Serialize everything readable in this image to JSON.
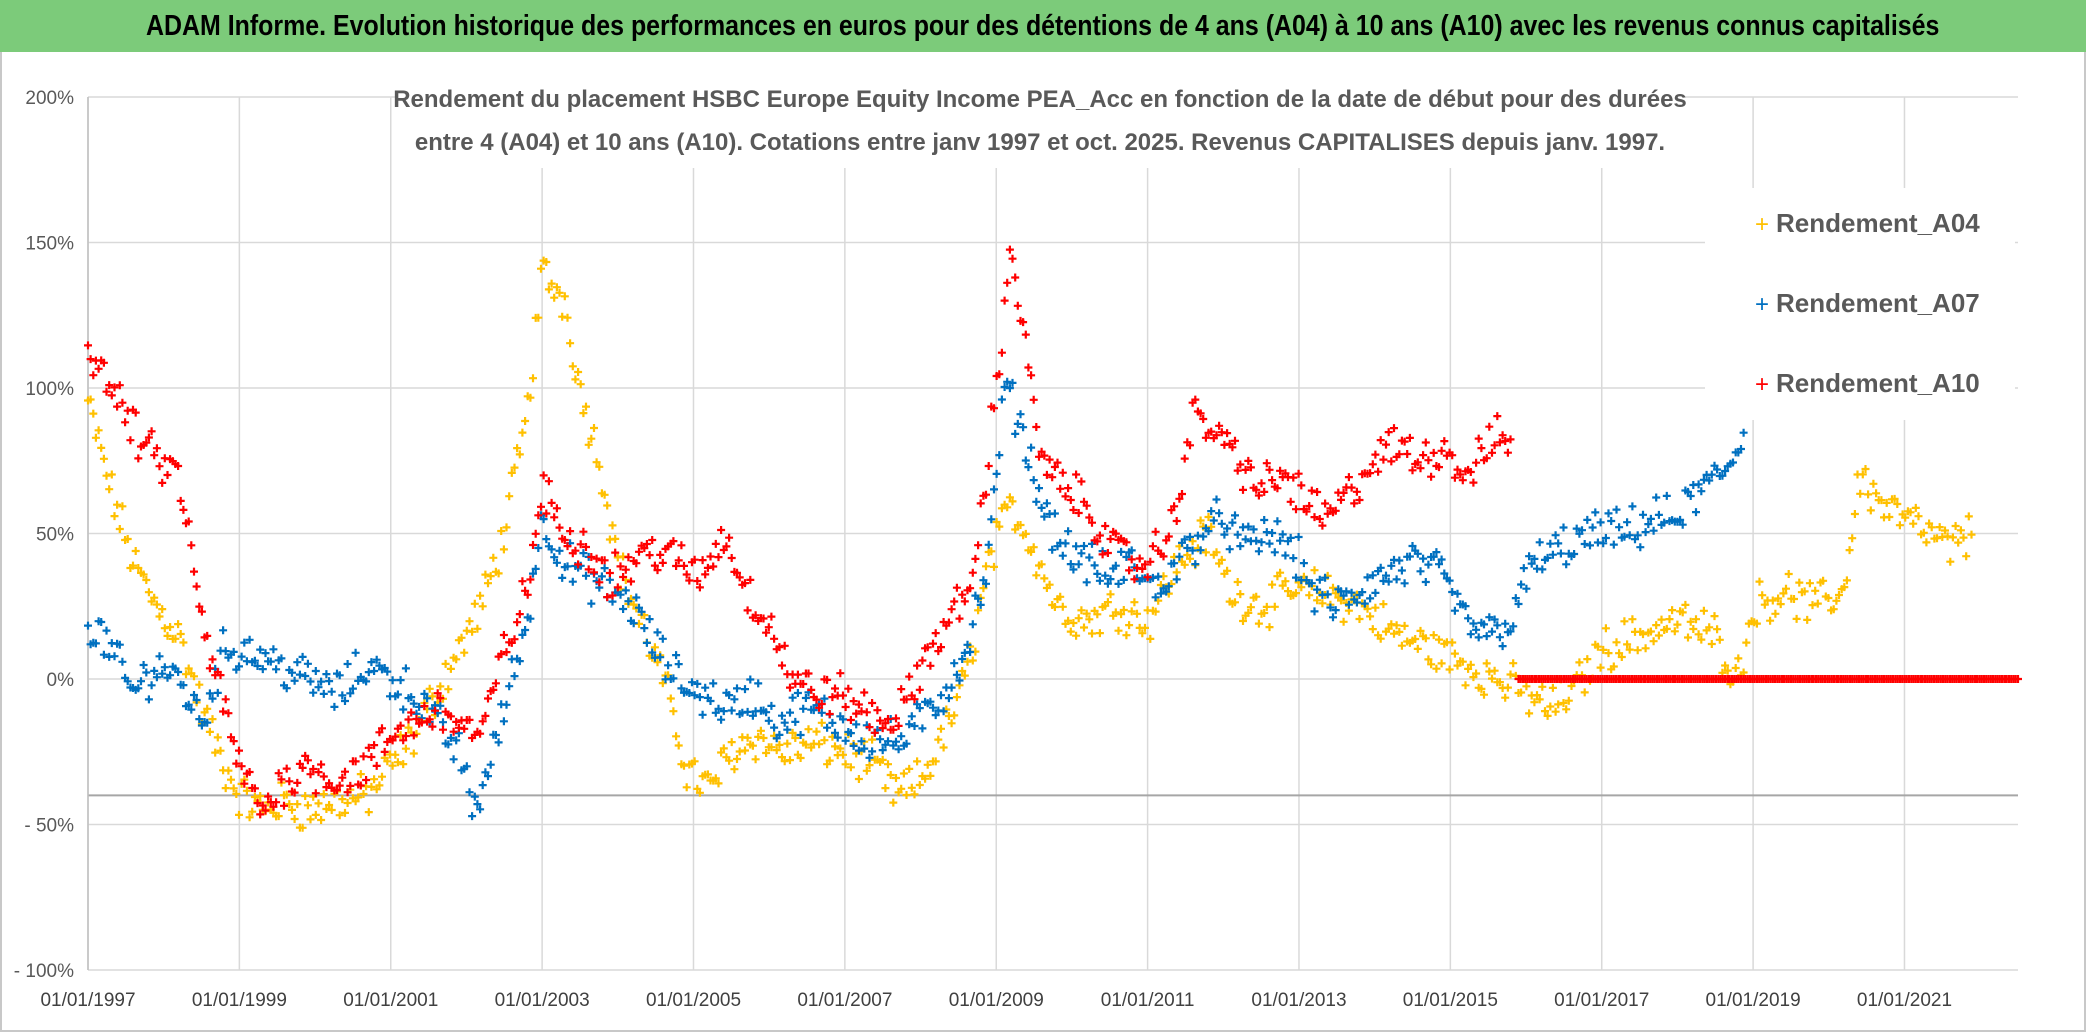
{
  "header": {
    "title": "ADAM Informe. Evolution historique des performances en euros pour des détentions de 4 ans (A04) à 10 ans (A10) avec les revenus connus capitalisés"
  },
  "chart_data": {
    "type": "scatter",
    "title_lines": [
      "Rendement du placement HSBC Europe Equity Income PEA_Acc en fonction de la date de début pour des durées",
      "entre 4 (A04) et 10 ans (A10). Cotations entre janv 1997 et oct. 2025. Revenus CAPITALISES depuis janv. 1997."
    ],
    "x_range": [
      1997.0,
      2022.5
    ],
    "y_range": [
      -100,
      200
    ],
    "y_ticks": [
      200,
      150,
      100,
      50,
      0,
      -50,
      -100
    ],
    "y_tick_labels": [
      "200%",
      "150%",
      "100%",
      "50%",
      "0%",
      "- 50%",
      "- 100%"
    ],
    "x_ticks": [
      1997,
      1999,
      2001,
      2003,
      2005,
      2007,
      2009,
      2011,
      2013,
      2015,
      2017,
      2019,
      2021
    ],
    "x_tick_labels": [
      "01/01/1997",
      "01/01/1999",
      "01/01/2001",
      "01/01/2003",
      "01/01/2005",
      "01/01/2007",
      "01/01/2009",
      "01/01/2011",
      "01/01/2013",
      "01/01/2015",
      "01/01/2017",
      "01/01/2019",
      "01/01/2021"
    ],
    "reference_line_y": -40,
    "legend_position": "top-right",
    "marker": "+",
    "series": [
      {
        "name": "Rendement_A04",
        "color": "#ffc000",
        "x_start": 1997.0,
        "x_end": 2021.9,
        "points": [
          [
            1997.0,
            95
          ],
          [
            1997.3,
            65
          ],
          [
            1997.6,
            40
          ],
          [
            1997.9,
            25
          ],
          [
            1998.2,
            15
          ],
          [
            1998.5,
            -10
          ],
          [
            1998.8,
            -30
          ],
          [
            1999.0,
            -40
          ],
          [
            1999.3,
            -45
          ],
          [
            1999.6,
            -42
          ],
          [
            1999.9,
            -45
          ],
          [
            2000.3,
            -42
          ],
          [
            2000.7,
            -40
          ],
          [
            2001.0,
            -30
          ],
          [
            2001.3,
            -20
          ],
          [
            2001.6,
            -5
          ],
          [
            2001.9,
            10
          ],
          [
            2002.2,
            25
          ],
          [
            2002.5,
            50
          ],
          [
            2002.8,
            90
          ],
          [
            2003.0,
            140
          ],
          [
            2003.3,
            130
          ],
          [
            2003.5,
            100
          ],
          [
            2003.8,
            70
          ],
          [
            2004.0,
            40
          ],
          [
            2004.3,
            20
          ],
          [
            2004.6,
            0
          ],
          [
            2004.9,
            -30
          ],
          [
            2005.2,
            -38
          ],
          [
            2005.5,
            -25
          ],
          [
            2005.8,
            -20
          ],
          [
            2006.2,
            -25
          ],
          [
            2006.6,
            -22
          ],
          [
            2007.0,
            -25
          ],
          [
            2007.4,
            -30
          ],
          [
            2007.7,
            -40
          ],
          [
            2008.0,
            -35
          ],
          [
            2008.3,
            -20
          ],
          [
            2008.6,
            0
          ],
          [
            2008.9,
            40
          ],
          [
            2009.2,
            60
          ],
          [
            2009.5,
            45
          ],
          [
            2009.8,
            25
          ],
          [
            2010.2,
            20
          ],
          [
            2010.6,
            25
          ],
          [
            2011.0,
            20
          ],
          [
            2011.4,
            40
          ],
          [
            2011.8,
            50
          ],
          [
            2012.1,
            30
          ],
          [
            2012.5,
            25
          ],
          [
            2012.9,
            30
          ],
          [
            2013.3,
            30
          ],
          [
            2013.8,
            25
          ],
          [
            2014.3,
            15
          ],
          [
            2014.8,
            10
          ],
          [
            2015.2,
            5
          ],
          [
            2015.6,
            0
          ],
          [
            2016.0,
            -5
          ],
          [
            2016.3,
            -10
          ],
          [
            2016.6,
            -5
          ],
          [
            2017.0,
            10
          ],
          [
            2017.5,
            15
          ],
          [
            2018.0,
            20
          ],
          [
            2018.5,
            15
          ],
          [
            2018.8,
            0
          ],
          [
            2019.0,
            25
          ],
          [
            2019.4,
            30
          ],
          [
            2019.8,
            25
          ],
          [
            2020.2,
            30
          ],
          [
            2020.4,
            70
          ],
          [
            2020.7,
            60
          ],
          [
            2021.0,
            55
          ],
          [
            2021.3,
            50
          ],
          [
            2021.6,
            45
          ],
          [
            2021.9,
            50
          ]
        ]
      },
      {
        "name": "Rendement_A07",
        "color": "#0070c0",
        "x_start": 1997.0,
        "x_end": 2018.9,
        "points": [
          [
            1997.0,
            20
          ],
          [
            1997.3,
            10
          ],
          [
            1997.6,
            -5
          ],
          [
            1997.9,
            5
          ],
          [
            1998.2,
            0
          ],
          [
            1998.5,
            -15
          ],
          [
            1998.8,
            10
          ],
          [
            1999.1,
            10
          ],
          [
            1999.5,
            5
          ],
          [
            1999.9,
            0
          ],
          [
            2000.3,
            -5
          ],
          [
            2000.7,
            5
          ],
          [
            2001.0,
            0
          ],
          [
            2001.3,
            -5
          ],
          [
            2001.6,
            -15
          ],
          [
            2001.9,
            -25
          ],
          [
            2002.1,
            -45
          ],
          [
            2002.3,
            -30
          ],
          [
            2002.5,
            -10
          ],
          [
            2002.8,
            20
          ],
          [
            2003.0,
            55
          ],
          [
            2003.3,
            40
          ],
          [
            2003.6,
            35
          ],
          [
            2003.9,
            30
          ],
          [
            2004.2,
            25
          ],
          [
            2004.5,
            10
          ],
          [
            2004.8,
            0
          ],
          [
            2005.1,
            -5
          ],
          [
            2005.5,
            -10
          ],
          [
            2005.8,
            -5
          ],
          [
            2006.1,
            -15
          ],
          [
            2006.5,
            -10
          ],
          [
            2006.9,
            -15
          ],
          [
            2007.3,
            -20
          ],
          [
            2007.7,
            -22
          ],
          [
            2008.0,
            -15
          ],
          [
            2008.3,
            -5
          ],
          [
            2008.6,
            10
          ],
          [
            2008.9,
            40
          ],
          [
            2009.1,
            100
          ],
          [
            2009.3,
            90
          ],
          [
            2009.6,
            60
          ],
          [
            2009.9,
            45
          ],
          [
            2010.2,
            40
          ],
          [
            2010.5,
            35
          ],
          [
            2010.8,
            40
          ],
          [
            2011.1,
            30
          ],
          [
            2011.4,
            40
          ],
          [
            2011.7,
            50
          ],
          [
            2012.0,
            55
          ],
          [
            2012.3,
            45
          ],
          [
            2012.6,
            50
          ],
          [
            2012.9,
            45
          ],
          [
            2013.2,
            30
          ],
          [
            2013.5,
            25
          ],
          [
            2013.8,
            30
          ],
          [
            2014.1,
            35
          ],
          [
            2014.5,
            40
          ],
          [
            2014.9,
            35
          ],
          [
            2015.2,
            20
          ],
          [
            2015.5,
            15
          ],
          [
            2015.8,
            20
          ],
          [
            2016.1,
            40
          ],
          [
            2016.5,
            45
          ],
          [
            2016.9,
            50
          ],
          [
            2017.3,
            50
          ],
          [
            2017.7,
            55
          ],
          [
            2018.0,
            55
          ],
          [
            2018.3,
            65
          ],
          [
            2018.6,
            70
          ],
          [
            2018.9,
            85
          ]
        ]
      },
      {
        "name": "Rendement_A10",
        "color": "#ff0000",
        "x_start": 1997.0,
        "x_end": 2015.8,
        "points": [
          [
            1997.0,
            115
          ],
          [
            1997.3,
            100
          ],
          [
            1997.6,
            85
          ],
          [
            1997.9,
            75
          ],
          [
            1998.2,
            70
          ],
          [
            1998.5,
            20
          ],
          [
            1998.8,
            -10
          ],
          [
            1999.0,
            -30
          ],
          [
            1999.3,
            -45
          ],
          [
            1999.6,
            -35
          ],
          [
            1999.9,
            -30
          ],
          [
            2000.3,
            -35
          ],
          [
            2000.7,
            -30
          ],
          [
            2001.0,
            -20
          ],
          [
            2001.3,
            -15
          ],
          [
            2001.6,
            -10
          ],
          [
            2001.9,
            -15
          ],
          [
            2002.2,
            -20
          ],
          [
            2002.5,
            10
          ],
          [
            2002.8,
            30
          ],
          [
            2003.0,
            65
          ],
          [
            2003.3,
            50
          ],
          [
            2003.6,
            45
          ],
          [
            2003.9,
            35
          ],
          [
            2004.2,
            40
          ],
          [
            2004.5,
            45
          ],
          [
            2004.8,
            40
          ],
          [
            2005.1,
            35
          ],
          [
            2005.4,
            50
          ],
          [
            2005.7,
            30
          ],
          [
            2006.0,
            20
          ],
          [
            2006.3,
            0
          ],
          [
            2006.6,
            -5
          ],
          [
            2006.9,
            -5
          ],
          [
            2007.2,
            -10
          ],
          [
            2007.5,
            -15
          ],
          [
            2007.8,
            -10
          ],
          [
            2008.1,
            10
          ],
          [
            2008.4,
            20
          ],
          [
            2008.7,
            35
          ],
          [
            2009.0,
            100
          ],
          [
            2009.2,
            150
          ],
          [
            2009.4,
            110
          ],
          [
            2009.6,
            75
          ],
          [
            2009.9,
            65
          ],
          [
            2010.2,
            60
          ],
          [
            2010.5,
            45
          ],
          [
            2010.8,
            40
          ],
          [
            2011.0,
            40
          ],
          [
            2011.3,
            50
          ],
          [
            2011.6,
            90
          ],
          [
            2011.9,
            85
          ],
          [
            2012.2,
            75
          ],
          [
            2012.5,
            65
          ],
          [
            2012.8,
            70
          ],
          [
            2013.1,
            60
          ],
          [
            2013.4,
            55
          ],
          [
            2013.7,
            65
          ],
          [
            2014.0,
            75
          ],
          [
            2014.3,
            80
          ],
          [
            2014.6,
            75
          ],
          [
            2014.9,
            80
          ],
          [
            2015.2,
            70
          ],
          [
            2015.5,
            80
          ],
          [
            2015.8,
            85
          ]
        ],
        "flat_zero": {
          "x_start": 2015.9,
          "x_end": 2022.5,
          "value": 0
        }
      }
    ]
  }
}
